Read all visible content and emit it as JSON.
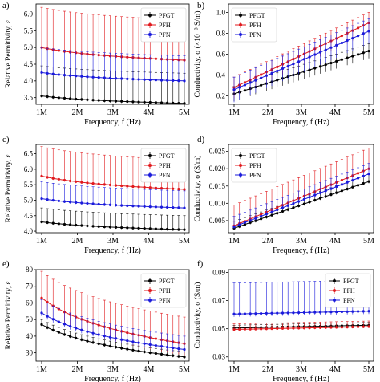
{
  "chart_data": [
    {
      "panel": "a)",
      "type": "line",
      "ylabel": "Relative Permitivity, ε",
      "xlabel": "Frequency, f (Hz)",
      "xticks": [
        "1M",
        "2M",
        "3M",
        "4M",
        "5M"
      ],
      "yticks": [
        "3.5",
        "4.0",
        "4.5",
        "5.0",
        "5.5",
        "6.0"
      ],
      "xlim": [
        1,
        5
      ],
      "ylim": [
        3.3,
        6.3
      ],
      "legend": "top-right",
      "series": [
        {
          "name": "PFGT",
          "color": "#000000",
          "start": 3.55,
          "end": 3.33,
          "err_up": 0.9,
          "err_down": 0.05
        },
        {
          "name": "PFH",
          "color": "#e0191d",
          "start": 5.0,
          "end": 4.62,
          "err_up": 1.2,
          "err_down": 0.05
        },
        {
          "name": "PFN",
          "color": "#1a1adb",
          "start": 4.25,
          "end": 4.0,
          "err_up": 0.75,
          "err_down": 0.05
        }
      ]
    },
    {
      "panel": "b)",
      "type": "line",
      "ylabel": "Conductivity, σ (×10⁻³ S/m)",
      "xlabel": "Frequency, f (Hz)",
      "xticks": [
        "1M",
        "2M",
        "3M",
        "4M",
        "5M"
      ],
      "yticks": [
        "0.2",
        "0.4",
        "0.6",
        "0.8",
        "1.0"
      ],
      "xlim": [
        1,
        5
      ],
      "ylim": [
        0.12,
        1.08
      ],
      "legend": "top-left",
      "series": [
        {
          "name": "PFGT",
          "color": "#000000",
          "start": 0.22,
          "end": 0.63,
          "err_up": 0.07,
          "err_down": 0.07
        },
        {
          "name": "PFH",
          "color": "#e0191d",
          "start": 0.28,
          "end": 0.9,
          "err_up": 0.1,
          "err_down": 0.1
        },
        {
          "name": "PFN",
          "color": "#1a1adb",
          "start": 0.26,
          "end": 0.82,
          "err_up": 0.12,
          "err_down": 0.12
        }
      ]
    },
    {
      "panel": "c)",
      "type": "line",
      "ylabel": "Relative Permitivity, ε",
      "xlabel": "Frequency, f (Hz)",
      "xticks": [
        "1M",
        "2M",
        "3M",
        "4M",
        "5M"
      ],
      "yticks": [
        "4.0",
        "4.5",
        "5.0",
        "5.5",
        "6.0",
        "6.5"
      ],
      "xlim": [
        1,
        5
      ],
      "ylim": [
        3.95,
        6.8
      ],
      "legend": "top-right",
      "series": [
        {
          "name": "PFGT",
          "color": "#000000",
          "start": 4.3,
          "end": 4.05,
          "err_up": 0.45,
          "err_down": 0.05
        },
        {
          "name": "PFH",
          "color": "#e0191d",
          "start": 5.78,
          "end": 5.35,
          "err_up": 0.95,
          "err_down": 0.05
        },
        {
          "name": "PFN",
          "color": "#1a1adb",
          "start": 5.05,
          "end": 4.75,
          "err_up": 0.55,
          "err_down": 0.05
        }
      ]
    },
    {
      "panel": "d)",
      "type": "line",
      "ylabel": "Conductivity, σ (S/m)",
      "xlabel": "Frequency, f (Hz)",
      "xticks": [
        "1M",
        "2M",
        "3M",
        "4M",
        "5M"
      ],
      "yticks": [
        "0.005",
        "0.010",
        "0.015",
        "0.020",
        "0.025"
      ],
      "xlim": [
        1,
        5
      ],
      "ylim": [
        0.0015,
        0.027
      ],
      "legend": "top-left",
      "series": [
        {
          "name": "PFGT",
          "color": "#000000",
          "start": 0.0028,
          "end": 0.0163,
          "err_up": 0.002,
          "err_down": 0.0005
        },
        {
          "name": "PFH",
          "color": "#e0191d",
          "start": 0.0035,
          "end": 0.02,
          "err_up": 0.006,
          "err_down": 0.0005
        },
        {
          "name": "PFN",
          "color": "#1a1adb",
          "start": 0.0032,
          "end": 0.0185,
          "err_up": 0.003,
          "err_down": 0.0005
        }
      ]
    },
    {
      "panel": "e)",
      "type": "line",
      "ylabel": "Relative Permitivity, ε",
      "xlabel": "Frequency, f (Hz)",
      "xticks": [
        "1M",
        "2M",
        "3M",
        "4M",
        "5M"
      ],
      "yticks": [
        "30",
        "40",
        "50",
        "60",
        "70",
        "80"
      ],
      "xlim": [
        1,
        5
      ],
      "ylim": [
        25,
        80
      ],
      "legend": "top-right",
      "series": [
        {
          "name": "PFGT",
          "color": "#000000",
          "start": 47,
          "end": 27.5,
          "err_up": 3,
          "err_down": 1
        },
        {
          "name": "PFH",
          "color": "#e0191d",
          "start": 63,
          "end": 35.5,
          "err_up": 16,
          "err_down": 7
        },
        {
          "name": "PFN",
          "color": "#1a1adb",
          "start": 54,
          "end": 32,
          "err_up": 8,
          "err_down": 2
        }
      ]
    },
    {
      "panel": "f)",
      "type": "line",
      "ylabel": "Conductivity, σ (S/m)",
      "xlabel": "Frequency, f (Hz)",
      "xticks": [
        "1M",
        "2M",
        "3M",
        "4M",
        "5M"
      ],
      "yticks": [
        "0.03",
        "0.05",
        "0.07",
        "0.09"
      ],
      "xlim": [
        1,
        5
      ],
      "ylim": [
        0.027,
        0.092
      ],
      "legend": "top-right",
      "series": [
        {
          "name": "PFGT",
          "color": "#000000",
          "start": 0.0505,
          "end": 0.0525,
          "err_up": 0.002,
          "err_down": 0.001
        },
        {
          "name": "PFH",
          "color": "#e0191d",
          "start": 0.0495,
          "end": 0.0515,
          "err_up": 0.004,
          "err_down": 0.001
        },
        {
          "name": "PFN",
          "color": "#1a1adb",
          "start": 0.0605,
          "end": 0.0625,
          "err_up": 0.022,
          "err_down": 0.002
        }
      ]
    }
  ]
}
